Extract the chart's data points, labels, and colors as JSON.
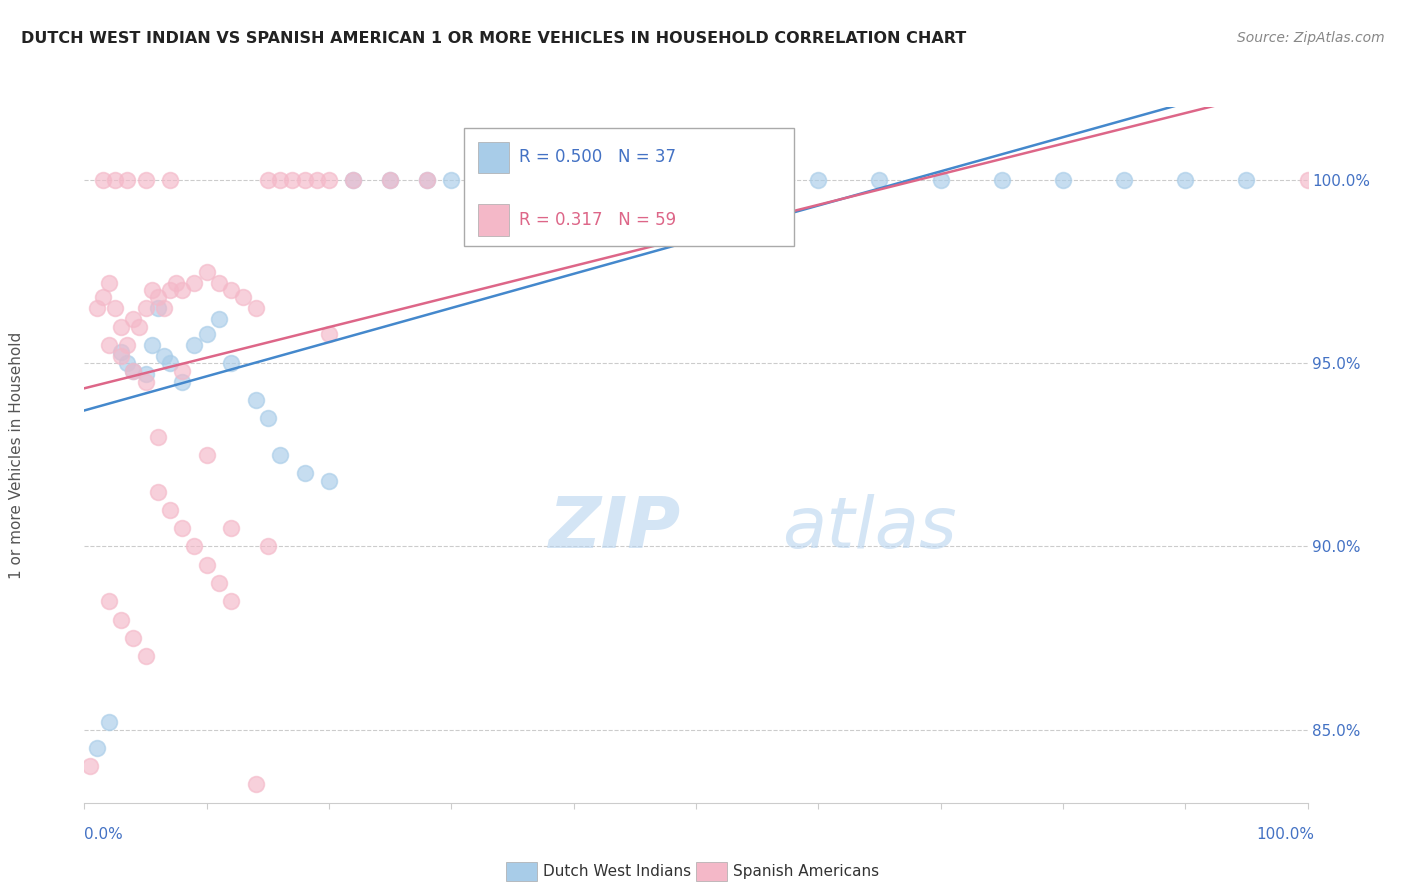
{
  "title": "DUTCH WEST INDIAN VS SPANISH AMERICAN 1 OR MORE VEHICLES IN HOUSEHOLD CORRELATION CHART",
  "source": "Source: ZipAtlas.com",
  "ylabel": "1 or more Vehicles in Household",
  "ylabel_tick_vals": [
    85.0,
    90.0,
    95.0,
    100.0
  ],
  "legend_blue_label": "Dutch West Indians",
  "legend_pink_label": "Spanish Americans",
  "R_blue": 0.5,
  "N_blue": 37,
  "R_pink": 0.317,
  "N_pink": 59,
  "blue_color": "#a8cce8",
  "pink_color": "#f4b8c8",
  "line_blue_color": "#4488cc",
  "line_pink_color": "#dd6688",
  "blue_scatter_x": [
    1.0,
    2.0,
    3.0,
    3.5,
    4.0,
    5.0,
    5.5,
    6.0,
    6.5,
    7.0,
    8.0,
    9.0,
    10.0,
    11.0,
    12.0,
    14.0,
    15.0,
    16.0,
    18.0,
    20.0,
    22.0,
    25.0,
    28.0,
    30.0,
    35.0,
    40.0,
    45.0,
    50.0,
    55.0,
    60.0,
    65.0,
    70.0,
    75.0,
    80.0,
    85.0,
    90.0,
    95.0
  ],
  "blue_scatter_y": [
    84.5,
    85.2,
    95.3,
    95.0,
    94.8,
    94.7,
    95.5,
    96.5,
    95.2,
    95.0,
    94.5,
    95.5,
    95.8,
    96.2,
    95.0,
    94.0,
    93.5,
    92.5,
    92.0,
    91.8,
    100.0,
    100.0,
    100.0,
    100.0,
    100.0,
    100.0,
    100.0,
    100.0,
    100.0,
    100.0,
    100.0,
    100.0,
    100.0,
    100.0,
    100.0,
    100.0,
    100.0
  ],
  "pink_scatter_x": [
    0.5,
    1.0,
    1.5,
    2.0,
    2.5,
    3.0,
    3.5,
    4.0,
    4.5,
    5.0,
    5.5,
    6.0,
    6.5,
    7.0,
    7.5,
    8.0,
    9.0,
    10.0,
    11.0,
    12.0,
    13.0,
    14.0,
    15.0,
    16.0,
    17.0,
    18.0,
    19.0,
    20.0,
    22.0,
    25.0,
    28.0,
    2.0,
    3.0,
    4.0,
    5.0,
    6.0,
    8.0,
    10.0,
    12.0,
    15.0,
    20.0,
    1.5,
    2.5,
    3.5,
    5.0,
    7.0,
    2.0,
    3.0,
    4.0,
    5.0,
    6.0,
    7.0,
    8.0,
    9.0,
    10.0,
    11.0,
    12.0,
    14.0,
    100.0
  ],
  "pink_scatter_y": [
    84.0,
    96.5,
    96.8,
    97.2,
    96.5,
    96.0,
    95.5,
    96.2,
    96.0,
    96.5,
    97.0,
    96.8,
    96.5,
    97.0,
    97.2,
    97.0,
    97.2,
    97.5,
    97.2,
    97.0,
    96.8,
    96.5,
    100.0,
    100.0,
    100.0,
    100.0,
    100.0,
    100.0,
    100.0,
    100.0,
    100.0,
    95.5,
    95.2,
    94.8,
    94.5,
    93.0,
    94.8,
    92.5,
    90.5,
    90.0,
    95.8,
    100.0,
    100.0,
    100.0,
    100.0,
    100.0,
    88.5,
    88.0,
    87.5,
    87.0,
    91.5,
    91.0,
    90.5,
    90.0,
    89.5,
    89.0,
    88.5,
    83.5,
    100.0
  ],
  "xmin": 0.0,
  "xmax": 100.0,
  "ymin": 83.0,
  "ymax": 102.0,
  "grid_color": "#cccccc",
  "watermark_zip": "ZIP",
  "watermark_atlas": "atlas",
  "background_color": "#ffffff"
}
